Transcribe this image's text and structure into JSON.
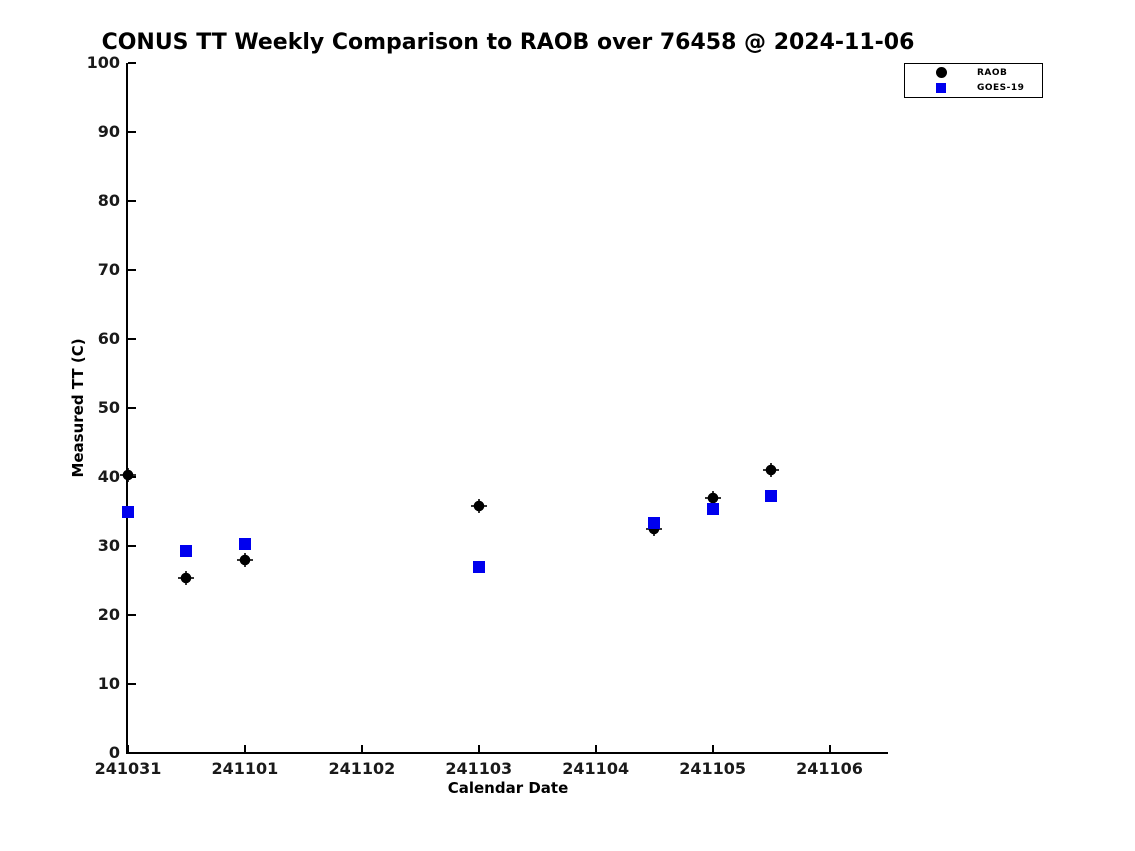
{
  "chart_data": {
    "type": "scatter",
    "title": "CONUS TT Weekly Comparison to RAOB over 76458 @ 2024-11-06",
    "xlabel": "Calendar Date",
    "ylabel": "Measured TT (C)",
    "x_tick_labels": [
      "241031",
      "241101",
      "241102",
      "241103",
      "241104",
      "241105",
      "241106"
    ],
    "x_tick_days": [
      0,
      1,
      2,
      3,
      4,
      5,
      6
    ],
    "xlim_days": [
      0,
      6.5
    ],
    "y_ticks": [
      0,
      10,
      20,
      30,
      40,
      50,
      60,
      70,
      80,
      90,
      100
    ],
    "ylim": [
      0,
      100
    ],
    "grid": false,
    "background_color": "#ffffff",
    "legend": {
      "position": "top-right-outside-axes",
      "entries": [
        {
          "label": "RAOB",
          "marker": "circle",
          "color": "#000000"
        },
        {
          "label": "GOES-19",
          "marker": "square",
          "color": "#0000ee"
        }
      ]
    },
    "series": [
      {
        "name": "RAOB",
        "marker": "circle",
        "color": "#000000",
        "x_days": [
          0,
          0.5,
          1,
          3,
          4.5,
          5,
          5.5
        ],
        "values": [
          40.3,
          25.3,
          27.9,
          35.8,
          32.4,
          36.9,
          41.0
        ]
      },
      {
        "name": "GOES-19",
        "marker": "square",
        "color": "#0000ee",
        "x_days": [
          0,
          0.5,
          1,
          3,
          4.5,
          5,
          5.5
        ],
        "values": [
          35.0,
          29.3,
          30.3,
          26.9,
          33.3,
          35.3,
          37.3
        ]
      }
    ]
  }
}
